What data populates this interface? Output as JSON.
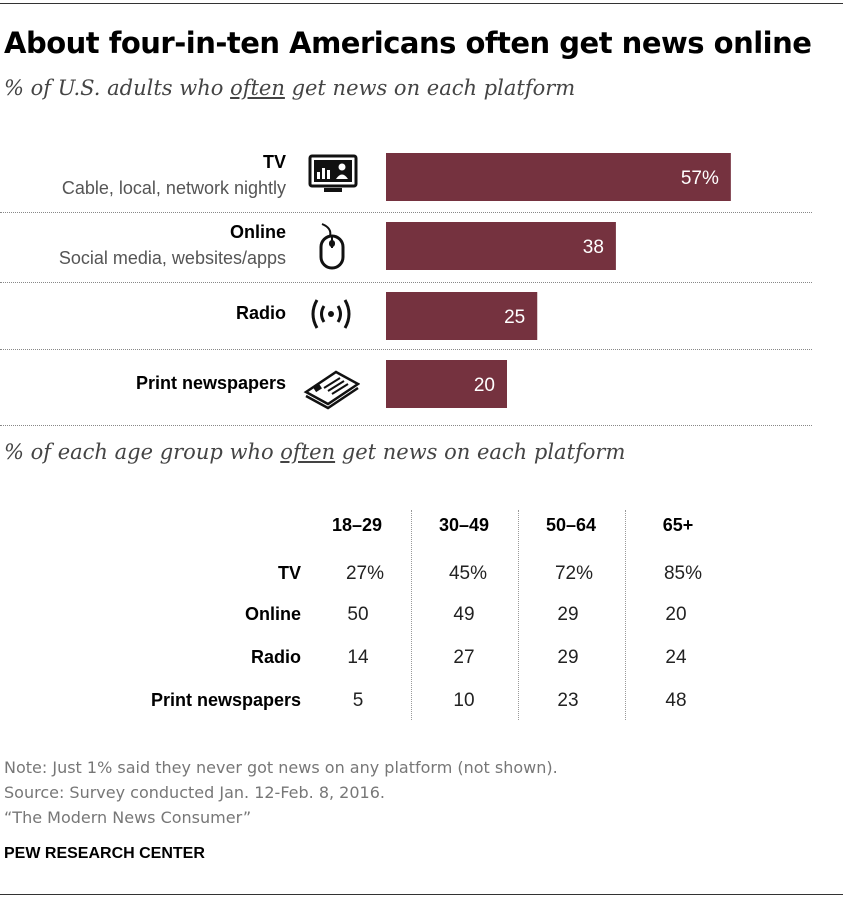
{
  "header": {
    "title": "About four-in-ten Americans often get news online",
    "subtitle_pre": "% of U.S. adults who ",
    "subtitle_em": "often",
    "subtitle_post": " get news on each platform"
  },
  "colors": {
    "bar": "#75323f",
    "bar_text": "#ffffff"
  },
  "platforms": [
    {
      "name": "TV",
      "desc": "Cable, local, network nightly",
      "icon": "tv-icon"
    },
    {
      "name": "Online",
      "desc": "Social media, websites/apps",
      "icon": "mouse-icon"
    },
    {
      "name": "Radio",
      "desc": "",
      "icon": "radio-waves-icon"
    },
    {
      "name": "Print newspapers",
      "desc": "",
      "icon": "newspaper-icon"
    }
  ],
  "chart_data": {
    "type": "bar",
    "orientation": "horizontal",
    "categories": [
      "TV",
      "Online",
      "Radio",
      "Print newspapers"
    ],
    "values": [
      57,
      38,
      25,
      20
    ],
    "value_labels": [
      "57%",
      "38",
      "25",
      "20"
    ],
    "xlim": [
      0,
      100
    ]
  },
  "table": {
    "subtitle_pre": "% of each age group who ",
    "subtitle_em": "often",
    "subtitle_post": " get news on each platform",
    "columns": [
      "18–29",
      "30–49",
      "50–64",
      "65+"
    ],
    "rows": [
      {
        "label": "TV",
        "values": [
          "27%",
          "45%",
          "72%",
          "85%"
        ]
      },
      {
        "label": "Online",
        "values": [
          "50",
          "49",
          "29",
          "20"
        ]
      },
      {
        "label": "Radio",
        "values": [
          "14",
          "27",
          "29",
          "24"
        ]
      },
      {
        "label": "Print newspapers",
        "values": [
          "5",
          "10",
          "23",
          "48"
        ]
      }
    ]
  },
  "footer": {
    "note": "Note: Just 1% said they never got news on any platform (not shown).",
    "source": "Source: Survey conducted Jan. 12-Feb. 8, 2016.",
    "report": "“The Modern News Consumer”",
    "org": "PEW RESEARCH CENTER"
  }
}
